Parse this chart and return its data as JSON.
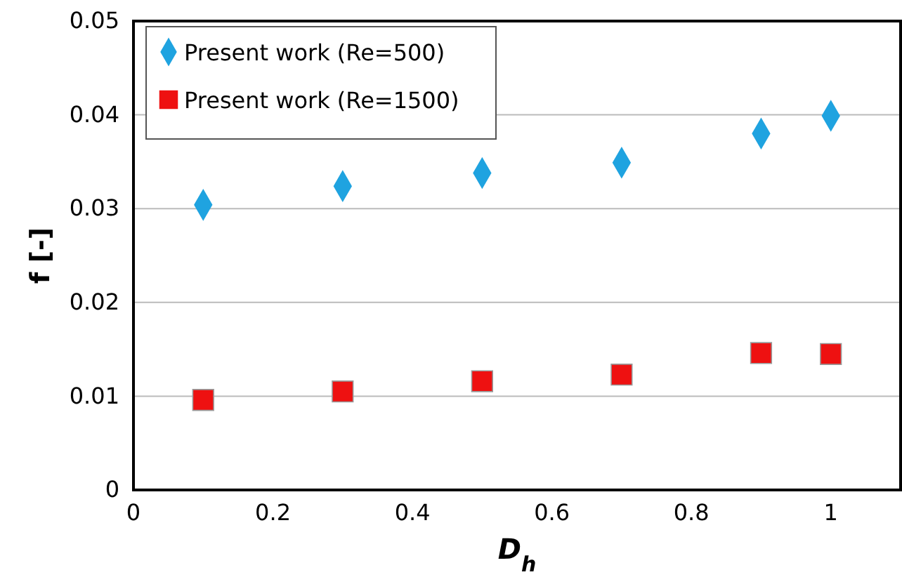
{
  "chart_data": {
    "type": "scatter",
    "xlabel": "D$_{h}$",
    "ylabel": "f [-]",
    "x": [
      0.1,
      0.3,
      0.5,
      0.7,
      0.9,
      1.0
    ],
    "series": [
      {
        "name": "Present work (Re=500)",
        "color": "#1fa3e0",
        "marker": "diamond",
        "values": [
          0.0304,
          0.0324,
          0.0338,
          0.0349,
          0.038,
          0.0399
        ]
      },
      {
        "name": "Present work (Re=1500)",
        "color": "#ee1111",
        "marker": "square",
        "values": [
          0.0096,
          0.0105,
          0.0116,
          0.0123,
          0.0146,
          0.0145
        ]
      }
    ],
    "xlim": [
      0,
      1.1
    ],
    "xticks": [
      0,
      0.2,
      0.4,
      0.6,
      0.8,
      1
    ],
    "ylim": [
      0,
      0.05
    ],
    "yticks": [
      0,
      0.01,
      0.02,
      0.03,
      0.04,
      0.05
    ],
    "grid": "y",
    "legend": "top left"
  }
}
